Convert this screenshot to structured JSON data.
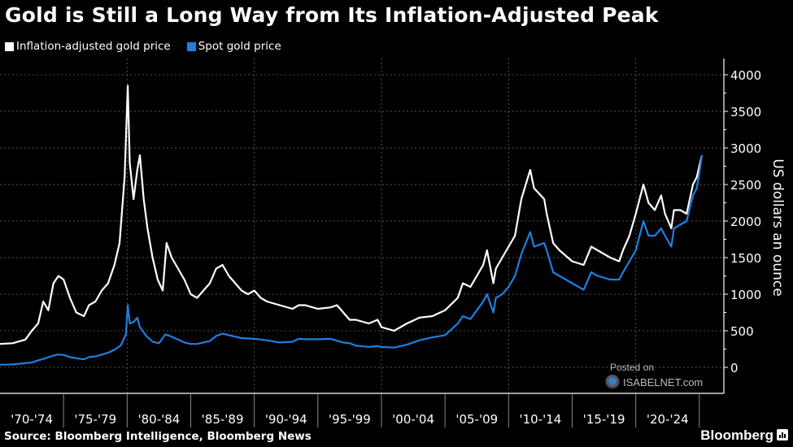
{
  "title": "Gold is Still a Long Way from Its Inflation-Adjusted Peak",
  "legend": [
    {
      "label": "Inflation-adjusted gold price",
      "color": "#ffffff"
    },
    {
      "label": "Spot gold price",
      "color": "#1f7fe0"
    }
  ],
  "source": "Source: Bloomberg Intelligence, Bloomberg News",
  "brand": "Bloomberg",
  "watermark": {
    "posted": "Posted on",
    "name": "ISABELNET.com"
  },
  "chart_data": {
    "type": "line",
    "title": "Gold is Still a Long Way from Its Inflation-Adjusted Peak",
    "xlabel": "",
    "ylabel": "US dollars an ounce",
    "ylim": [
      -300,
      4200
    ],
    "yticks": [
      0,
      500,
      1000,
      1500,
      2000,
      2500,
      3000,
      3500,
      4000
    ],
    "xlim": [
      1970,
      2025.3
    ],
    "xtick_labels": [
      "'70-'74",
      "'75-'79",
      "'80-'84",
      "'85-'89",
      "'90-'94",
      "'95-'99",
      "'00-'04",
      "'05-'09",
      "'10-'14",
      "'15-'19",
      "'20-'24"
    ],
    "grid": true,
    "legend_position": "top-left",
    "series": [
      {
        "name": "Inflation-adjusted gold price",
        "color": "#ffffff",
        "x": [
          1970,
          1971,
          1972,
          1972.5,
          1973,
          1973.4,
          1973.8,
          1974.2,
          1974.6,
          1975,
          1975.5,
          1976,
          1976.6,
          1977,
          1977.5,
          1978,
          1978.5,
          1979,
          1979.4,
          1979.8,
          1980.05,
          1980.2,
          1980.5,
          1980.8,
          1981,
          1981.3,
          1981.6,
          1982,
          1982.4,
          1982.8,
          1983.1,
          1983.5,
          1984,
          1984.5,
          1985,
          1985.5,
          1986,
          1986.5,
          1987,
          1987.5,
          1988,
          1988.5,
          1989,
          1989.5,
          1990,
          1990.5,
          1991,
          1992,
          1993,
          1993.5,
          1994,
          1995,
          1996,
          1996.5,
          1997,
          1997.5,
          1998,
          1999,
          1999.7,
          2000,
          2001,
          2001.5,
          2002,
          2003,
          2004,
          2005,
          2006,
          2006.4,
          2007,
          2008,
          2008.3,
          2008.8,
          2009,
          2009.5,
          2010,
          2010.5,
          2011,
          2011.7,
          2012,
          2012.8,
          2013,
          2013.5,
          2014,
          2015,
          2015.9,
          2016.5,
          2017,
          2018,
          2018.7,
          2019,
          2019.5,
          2020,
          2020.6,
          2021,
          2021.5,
          2022,
          2022.3,
          2022.8,
          2023,
          2023.5,
          2024,
          2024.5,
          2024.8,
          2025,
          2025.2
        ],
        "y": [
          320,
          330,
          380,
          500,
          600,
          900,
          780,
          1150,
          1250,
          1200,
          950,
          750,
          700,
          850,
          900,
          1050,
          1150,
          1400,
          1700,
          2600,
          3850,
          2800,
          2300,
          2700,
          2900,
          2300,
          1900,
          1500,
          1200,
          1050,
          1700,
          1500,
          1350,
          1200,
          1000,
          950,
          1050,
          1150,
          1350,
          1400,
          1250,
          1150,
          1050,
          1000,
          1050,
          950,
          900,
          850,
          800,
          850,
          850,
          800,
          820,
          850,
          750,
          650,
          650,
          600,
          650,
          550,
          500,
          550,
          600,
          680,
          700,
          780,
          950,
          1150,
          1100,
          1400,
          1600,
          1150,
          1350,
          1500,
          1650,
          1800,
          2300,
          2700,
          2450,
          2300,
          2100,
          1700,
          1600,
          1450,
          1400,
          1650,
          1600,
          1500,
          1450,
          1600,
          1800,
          2100,
          2500,
          2250,
          2150,
          2350,
          2100,
          1900,
          2150,
          2150,
          2100,
          2500,
          2600,
          2750,
          2900
        ]
      },
      {
        "name": "Spot gold price",
        "color": "#1f7fe0",
        "x": [
          1970,
          1971,
          1972,
          1972.5,
          1973,
          1973.5,
          1974,
          1974.5,
          1975,
          1975.5,
          1976,
          1976.6,
          1977,
          1977.5,
          1978,
          1978.5,
          1979,
          1979.5,
          1979.9,
          1980.05,
          1980.2,
          1980.5,
          1980.8,
          1981,
          1981.5,
          1982,
          1982.5,
          1983,
          1983.5,
          1984,
          1984.5,
          1985,
          1985.5,
          1986,
          1986.5,
          1987,
          1987.5,
          1988,
          1989,
          1990,
          1991,
          1992,
          1993,
          1993.5,
          1994,
          1995,
          1996,
          1997,
          1997.5,
          1998,
          1999,
          1999.7,
          2000,
          2001,
          2002,
          2003,
          2004,
          2005,
          2006,
          2006.4,
          2007,
          2008,
          2008.3,
          2008.8,
          2009,
          2009.5,
          2010,
          2010.5,
          2011,
          2011.7,
          2012,
          2012.8,
          2013,
          2013.5,
          2014,
          2015,
          2015.9,
          2016.5,
          2017,
          2018,
          2018.7,
          2019,
          2019.5,
          2020,
          2020.6,
          2021,
          2021.5,
          2022,
          2022.3,
          2022.8,
          2023,
          2023.5,
          2024,
          2024.5,
          2024.8,
          2025,
          2025.2
        ],
        "y": [
          36,
          40,
          58,
          65,
          95,
          120,
          150,
          175,
          170,
          140,
          125,
          110,
          140,
          150,
          175,
          200,
          240,
          300,
          450,
          850,
          600,
          620,
          680,
          550,
          430,
          350,
          330,
          450,
          420,
          380,
          340,
          320,
          320,
          340,
          360,
          430,
          460,
          440,
          400,
          390,
          370,
          340,
          350,
          390,
          385,
          385,
          390,
          340,
          330,
          295,
          280,
          290,
          280,
          270,
          310,
          370,
          410,
          440,
          600,
          700,
          660,
          900,
          1000,
          750,
          950,
          1000,
          1100,
          1250,
          1550,
          1850,
          1650,
          1700,
          1600,
          1300,
          1250,
          1150,
          1060,
          1300,
          1250,
          1200,
          1200,
          1300,
          1450,
          1600,
          2000,
          1800,
          1800,
          1900,
          1800,
          1650,
          1900,
          1950,
          2000,
          2350,
          2450,
          2650,
          2900
        ]
      }
    ]
  }
}
